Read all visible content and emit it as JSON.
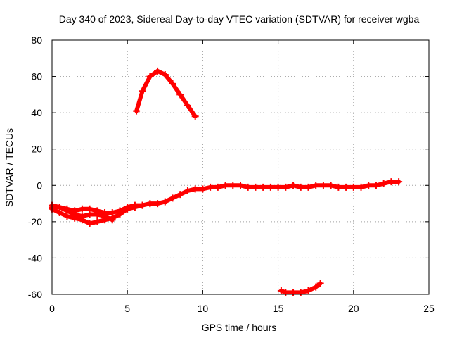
{
  "chart_data": {
    "type": "scatter",
    "title": "Day 340 of 2023, Sidereal Day-to-day VTEC variation (SDTVAR) for receiver wgba",
    "xlabel": "GPS time / hours",
    "ylabel": "SDTVAR / TECUs",
    "xlim": [
      0,
      25
    ],
    "ylim": [
      -60,
      80
    ],
    "xticks": [
      0,
      5,
      10,
      15,
      20,
      25
    ],
    "yticks": [
      -60,
      -40,
      -20,
      0,
      20,
      40,
      60,
      80
    ],
    "xtick_labels": [
      "0",
      "5",
      "10",
      "15",
      "20",
      "25"
    ],
    "ytick_labels": [
      "-60",
      "-40",
      "-20",
      "0",
      "20",
      "40",
      "60",
      "80"
    ],
    "grid": true,
    "legend": "none",
    "series_color": "#ff0000",
    "series": [
      {
        "name": "arc-main-upper",
        "x": [
          0,
          0.5,
          1,
          1.5,
          2,
          2.5,
          3,
          3.5,
          4,
          4.5,
          5,
          5.5,
          6,
          6.5,
          7,
          7.5,
          8,
          8.5,
          9,
          9.5,
          10,
          10.5,
          11,
          11.5,
          12,
          12.5,
          13,
          13.5,
          14,
          14.5,
          15,
          15.5,
          16,
          16.5,
          17,
          17.5,
          18,
          18.5,
          19,
          19.5,
          20,
          20.5,
          21,
          21.5,
          22,
          22.5,
          23
        ],
        "y": [
          -12,
          -12,
          -13,
          -14,
          -13,
          -13,
          -14,
          -15,
          -15,
          -14,
          -12,
          -11,
          -11,
          -10,
          -10,
          -9,
          -7,
          -5,
          -3,
          -2,
          -2,
          -1,
          -1,
          0,
          0,
          0,
          -1,
          -1,
          -1,
          -1,
          -1,
          -1,
          0,
          -1,
          -1,
          0,
          0,
          0,
          -1,
          -1,
          -1,
          -1,
          0,
          0,
          1,
          2,
          2
        ]
      },
      {
        "name": "arc-early-lower",
        "x": [
          0,
          0.5,
          1,
          1.5,
          2,
          2.5,
          3,
          3.5,
          4,
          4.5,
          5,
          5.5,
          6
        ],
        "y": [
          -13,
          -15,
          -17,
          -18,
          -19,
          -21,
          -20,
          -19,
          -18,
          -16,
          -13,
          -12,
          -11
        ]
      },
      {
        "name": "arc-early-middle",
        "x": [
          0,
          0.5,
          1,
          1.5,
          2,
          2.5,
          3,
          3.5,
          4
        ],
        "y": [
          -11,
          -12,
          -14,
          -16,
          -17,
          -16,
          -16,
          -17,
          -19
        ]
      },
      {
        "name": "arc-peak",
        "x": [
          5.6,
          6,
          6.5,
          7,
          7.5,
          8,
          8.5,
          9,
          9.5
        ],
        "y": [
          41,
          52,
          60,
          63,
          61,
          56,
          50,
          44,
          38
        ]
      },
      {
        "name": "arc-low",
        "x": [
          15.2,
          15.5,
          16,
          16.5,
          17,
          17.5,
          17.8
        ],
        "y": [
          -58,
          -59,
          -59,
          -59,
          -58,
          -56,
          -54
        ]
      }
    ]
  }
}
